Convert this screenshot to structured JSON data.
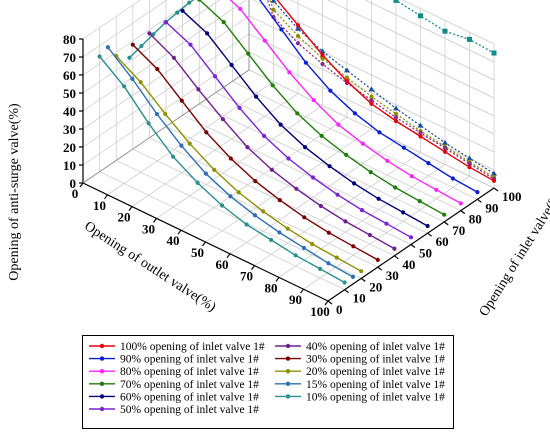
{
  "chart_data": {
    "type": "line",
    "projection": "3d",
    "title": "",
    "xlabel": "Opening of outlet valve(%)",
    "ylabel": "Opening of inlet valve(%)",
    "zlabel": "Opening of anti-surge valve(%)",
    "x_ticks": [
      "0",
      "10",
      "20",
      "30",
      "40",
      "50",
      "60",
      "70",
      "80",
      "90",
      "100"
    ],
    "y_ticks": [
      "0",
      "10",
      "20",
      "30",
      "40",
      "50",
      "60",
      "70",
      "80",
      "90",
      "100"
    ],
    "z_ticks": [
      "0",
      "10",
      "20",
      "30",
      "40",
      "50",
      "60",
      "70",
      "80"
    ],
    "xlim": [
      0,
      100
    ],
    "ylim": [
      0,
      100
    ],
    "zlim": [
      0,
      80
    ],
    "grid": true,
    "legend_position": "bottom",
    "x": [
      0,
      10,
      20,
      30,
      40,
      50,
      60,
      70,
      80,
      90,
      100
    ],
    "series": [
      {
        "name": "100% opening of inlet valve 1#",
        "inlet_opening": 100,
        "color": "#e8000b",
        "values": [
          52,
          48,
          38,
          28,
          20,
          14,
          11,
          9,
          7,
          5,
          4
        ]
      },
      {
        "name": "90% opening of inlet valve 1#",
        "inlet_opening": 90,
        "color": "#0a1fd6",
        "values": [
          60,
          54,
          42,
          30,
          21,
          15,
          11,
          9,
          7,
          5,
          4
        ]
      },
      {
        "name": "80% opening of inlet valve 1#",
        "inlet_opening": 80,
        "color": "#ff22ff",
        "values": [
          59,
          53,
          42,
          31,
          22,
          15,
          11,
          8,
          6,
          5,
          4
        ]
      },
      {
        "name": "70% opening of inlet valve 1#",
        "inlet_opening": 70,
        "color": "#1f7d0a",
        "values": [
          58,
          52,
          41,
          30,
          21,
          15,
          11,
          8,
          6,
          5,
          4
        ]
      },
      {
        "name": "60% opening of inlet valve 1#",
        "inlet_opening": 60,
        "color": "#00007a",
        "values": [
          58,
          52,
          41,
          30,
          21,
          15,
          11,
          8,
          6,
          5,
          4
        ]
      },
      {
        "name": "50% opening of inlet valve 1#",
        "inlet_opening": 50,
        "color": "#7a22d8",
        "values": [
          58,
          52,
          41,
          30,
          21,
          15,
          11,
          8,
          6,
          5,
          4
        ]
      },
      {
        "name": "40% opening of inlet valve 1#",
        "inlet_opening": 40,
        "color": "#6f1f8f",
        "values": [
          58,
          51,
          40,
          30,
          21,
          15,
          11,
          8,
          6,
          5,
          4
        ]
      },
      {
        "name": "30% opening of inlet valve 1#",
        "inlet_opening": 30,
        "color": "#7a0000",
        "values": [
          58,
          51,
          40,
          29,
          21,
          15,
          11,
          8,
          6,
          5,
          4
        ]
      },
      {
        "name": "20% opening of inlet valve 1#",
        "inlet_opening": 20,
        "color": "#8f8f00",
        "values": [
          58,
          50,
          39,
          29,
          21,
          15,
          11,
          8,
          6,
          5,
          4
        ]
      },
      {
        "name": "15% opening of inlet valve 1#",
        "inlet_opening": 15,
        "color": "#2e6fb5",
        "values": [
          66,
          55,
          42,
          31,
          22,
          16,
          12,
          9,
          7,
          5,
          4
        ]
      },
      {
        "name": "10% opening of inlet valve 1#",
        "inlet_opening": 10,
        "color": "#2a8f8f",
        "values": [
          64,
          54,
          40,
          28,
          20,
          14,
          10,
          8,
          6,
          5,
          4
        ]
      }
    ],
    "back_wall_lines": [
      {
        "color": "#0e8c8c",
        "values": [
          70,
          71,
          73,
          75,
          76,
          77,
          78,
          76,
          74,
          76,
          75
        ]
      },
      {
        "color": "#1a4fa0",
        "values": [
          72,
          45,
          36,
          30,
          26,
          22,
          18,
          15,
          12,
          10,
          8
        ]
      },
      {
        "color": "#8f8f00",
        "values": [
          70,
          40,
          32,
          26,
          22,
          18,
          15,
          12,
          10,
          8,
          6
        ]
      },
      {
        "color": "#8a2b8a",
        "values": [
          68,
          36,
          28,
          23,
          19,
          16,
          13,
          11,
          9,
          7,
          5
        ]
      }
    ],
    "side_wall_line": {
      "color": "#2a8f8f",
      "values": [
        52,
        54,
        56,
        58,
        59,
        60,
        60,
        59,
        58,
        57,
        56
      ]
    }
  }
}
